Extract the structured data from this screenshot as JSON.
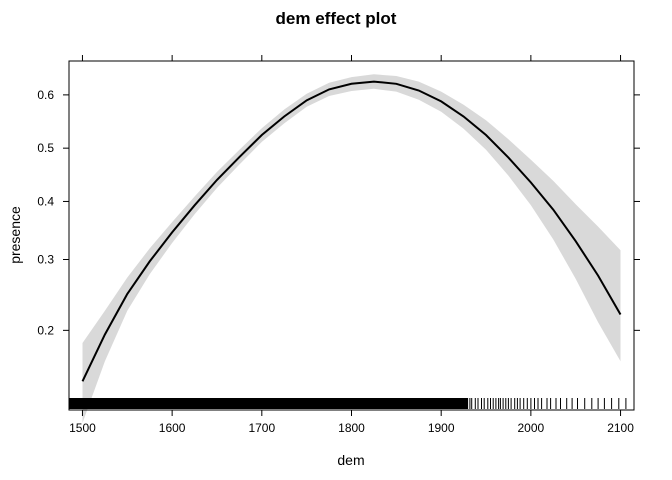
{
  "chart_data": {
    "type": "line",
    "title": "dem effect plot",
    "xlabel": "dem",
    "ylabel": "presence",
    "xlim": [
      1485,
      2115
    ],
    "ylim": [
      0.12,
      0.66
    ],
    "y_scale": "logit",
    "x_ticks": [
      1500,
      1600,
      1700,
      1800,
      1900,
      2000,
      2100
    ],
    "y_ticks": [
      0.2,
      0.3,
      0.4,
      0.5,
      0.6
    ],
    "y_tick_labels": [
      "0.2",
      "0.3",
      "0.4",
      "0.5",
      "0.6"
    ],
    "grid": false,
    "colors": {
      "line": "#000000",
      "band": "#d9d9d9",
      "frame": "#000000"
    },
    "series": [
      {
        "x": [
          1500,
          1525,
          1550,
          1575,
          1600,
          1625,
          1650,
          1675,
          1700,
          1725,
          1750,
          1775,
          1800,
          1825,
          1850,
          1875,
          1900,
          1925,
          1950,
          1975,
          2000,
          2025,
          2050,
          2075,
          2100
        ],
        "y": [
          0.145,
          0.195,
          0.248,
          0.297,
          0.345,
          0.393,
          0.44,
          0.483,
          0.525,
          0.56,
          0.59,
          0.61,
          0.62,
          0.624,
          0.62,
          0.608,
          0.588,
          0.56,
          0.525,
          0.482,
          0.435,
          0.385,
          0.33,
          0.275,
          0.22
        ],
        "upper": [
          0.185,
          0.225,
          0.272,
          0.318,
          0.363,
          0.409,
          0.455,
          0.497,
          0.538,
          0.573,
          0.602,
          0.622,
          0.632,
          0.637,
          0.634,
          0.624,
          0.606,
          0.582,
          0.553,
          0.517,
          0.478,
          0.438,
          0.395,
          0.355,
          0.315
        ],
        "lower": [
          0.11,
          0.165,
          0.225,
          0.277,
          0.327,
          0.377,
          0.425,
          0.469,
          0.512,
          0.547,
          0.578,
          0.598,
          0.607,
          0.611,
          0.606,
          0.591,
          0.569,
          0.537,
          0.497,
          0.448,
          0.393,
          0.333,
          0.27,
          0.21,
          0.165
        ]
      }
    ],
    "rug": {
      "dense_range": [
        1485,
        1930
      ],
      "sparse_x": [
        1932,
        1934,
        1938,
        1941,
        1945,
        1948,
        1952,
        1955,
        1958,
        1961,
        1964,
        1966,
        1969,
        1972,
        1975,
        1978,
        1982,
        1985,
        1988,
        1992,
        1996,
        2000,
        2004,
        2008,
        2012,
        2018,
        2022,
        2028,
        2033,
        2040,
        2046,
        2052,
        2060,
        2068,
        2075,
        2082,
        2090,
        2098,
        2106
      ]
    }
  }
}
